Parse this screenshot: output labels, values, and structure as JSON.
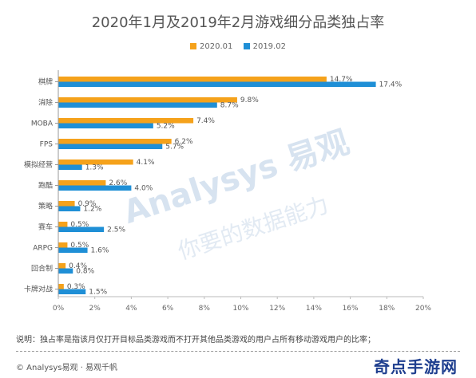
{
  "chart_data": {
    "type": "bar",
    "orientation": "horizontal",
    "title": "2020年1月及2019年2月游戏细分品类独占率",
    "categories": [
      "棋牌",
      "消除",
      "MOBA",
      "FPS",
      "模拟经营",
      "跑酷",
      "策略",
      "赛车",
      "ARPG",
      "回合制",
      "卡牌对战"
    ],
    "series": [
      {
        "name": "2020.01",
        "color": "#F5A21B",
        "values": [
          14.7,
          9.8,
          7.4,
          6.2,
          4.1,
          2.6,
          0.9,
          0.5,
          0.5,
          0.4,
          0.3
        ],
        "labels": [
          "14.7%",
          "9.8%",
          "7.4%",
          "6.2%",
          "4.1%",
          "2.6%",
          "0.9%",
          "0.5%",
          "0.5%",
          "0.4%",
          "0.3%"
        ]
      },
      {
        "name": "2019.02",
        "color": "#1F8FD6",
        "values": [
          17.4,
          8.7,
          5.2,
          5.7,
          1.3,
          4.0,
          1.2,
          2.5,
          1.6,
          0.8,
          1.5
        ],
        "labels": [
          "17.4%",
          "8.7%",
          "5.2%",
          "5.7%",
          "1.3%",
          "4.0%",
          "1.2%",
          "2.5%",
          "1.6%",
          "0.8%",
          "1.5%"
        ]
      }
    ],
    "xlim": [
      0,
      20
    ],
    "xticks": [
      "0%",
      "2%",
      "4%",
      "6%",
      "8%",
      "10%",
      "12%",
      "14%",
      "16%",
      "18%",
      "20%"
    ],
    "grid": false,
    "legend_position": "top-center"
  },
  "note": "说明：独占率是指该月仅打开目标品类游戏而不打开其他品类游戏的用户占所有移动游戏用户的比率；",
  "source": "© Analysys易观 · 易观千帆",
  "watermark": "Analysys 易观",
  "watermark_sub": "你要的数据能力",
  "corner_logo": "奇点手游网"
}
